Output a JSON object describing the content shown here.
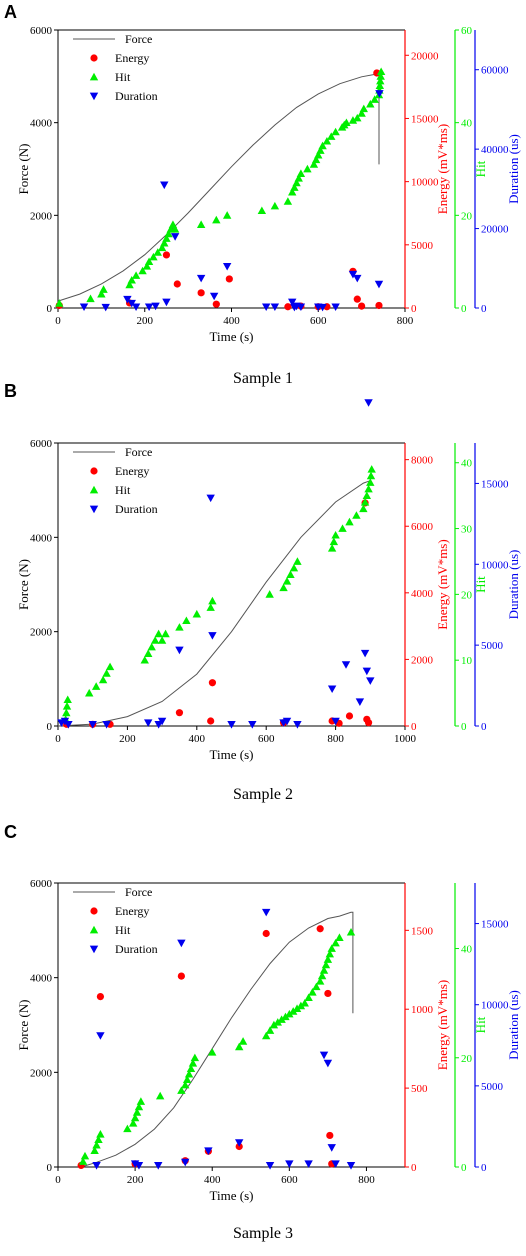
{
  "colors": {
    "force": "#555555",
    "energy": "#ff0000",
    "hit": "#00ee00",
    "duration": "#0000ee",
    "axis": "#000000"
  },
  "chart_data": [
    {
      "type": "scatter",
      "panel_label": "A",
      "caption": "Sample 1",
      "xlabel": "Time (s)",
      "xlim": [
        0,
        800
      ],
      "xticks": [
        0,
        200,
        400,
        600,
        800
      ],
      "legend_position": "top-left",
      "axes": {
        "force": {
          "label": "Force (N)",
          "lim": [
            0,
            6000
          ],
          "ticks": [
            0,
            2000,
            4000,
            6000
          ]
        },
        "energy": {
          "label": "Energy (mV*ms)",
          "lim": [
            0,
            22000
          ],
          "ticks": [
            0,
            5000,
            10000,
            15000,
            20000
          ]
        },
        "hit": {
          "label": "Hit",
          "lim": [
            0,
            60
          ],
          "ticks": [
            0,
            20,
            40,
            60
          ]
        },
        "duration": {
          "label": "Duration (us)",
          "lim": [
            0,
            70000
          ],
          "ticks": [
            0,
            20000,
            40000,
            60000
          ]
        }
      },
      "series": [
        {
          "name": "Force",
          "kind": "line",
          "axis": "force",
          "x": [
            0,
            50,
            100,
            150,
            200,
            250,
            300,
            350,
            400,
            450,
            500,
            550,
            600,
            650,
            700,
            740,
            740
          ],
          "y": [
            150,
            300,
            520,
            800,
            1150,
            1580,
            2050,
            2550,
            3050,
            3520,
            3950,
            4330,
            4620,
            4840,
            4990,
            5060,
            3100
          ]
        },
        {
          "name": "Energy",
          "kind": "circle",
          "axis": "energy",
          "x": [
            3,
            165,
            250,
            275,
            330,
            365,
            395,
            680,
            690,
            735,
            740,
            530,
            560,
            600,
            620,
            700
          ],
          "y": [
            200,
            400,
            4200,
            1900,
            1200,
            300,
            2300,
            2900,
            700,
            18600,
            200,
            100,
            150,
            100,
            100,
            150
          ]
        },
        {
          "name": "Hit",
          "kind": "triangle-up",
          "axis": "hit",
          "x": [
            3,
            75,
            100,
            105,
            165,
            170,
            180,
            195,
            205,
            210,
            220,
            230,
            240,
            245,
            250,
            255,
            260,
            265,
            270,
            330,
            365,
            390,
            470,
            500,
            530,
            540,
            545,
            550,
            555,
            560,
            575,
            590,
            595,
            600,
            605,
            610,
            620,
            630,
            640,
            655,
            660,
            665,
            680,
            690,
            700,
            705,
            720,
            730,
            740,
            741,
            742,
            743,
            744,
            745
          ],
          "y": [
            1,
            2,
            3,
            4,
            5,
            6,
            7,
            8,
            9,
            10,
            11,
            12,
            13,
            14,
            15,
            16,
            17,
            18,
            17,
            18,
            19,
            20,
            21,
            22,
            23,
            25,
            26,
            27,
            28,
            29,
            30,
            31,
            32,
            33,
            34,
            35,
            36,
            37,
            38,
            39,
            39.5,
            40,
            40.5,
            41,
            42,
            43,
            44,
            45,
            46,
            47,
            48,
            49,
            50,
            51
          ]
        },
        {
          "name": "Duration",
          "kind": "triangle-down",
          "axis": "duration",
          "x": [
            60,
            110,
            160,
            170,
            180,
            210,
            225,
            245,
            250,
            270,
            330,
            360,
            390,
            480,
            500,
            540,
            545,
            550,
            560,
            600,
            610,
            640,
            680,
            690,
            740,
            741
          ],
          "y": [
            300,
            200,
            2200,
            1200,
            300,
            300,
            500,
            31000,
            1500,
            18000,
            7500,
            3000,
            10500,
            300,
            300,
            1500,
            200,
            500,
            300,
            300,
            200,
            300,
            8500,
            7500,
            6000,
            54000
          ]
        }
      ]
    },
    {
      "type": "scatter",
      "panel_label": "B",
      "caption": "Sample 2",
      "xlabel": "Time (s)",
      "xlim": [
        0,
        1000
      ],
      "xticks": [
        0,
        200,
        400,
        600,
        800,
        1000
      ],
      "legend_position": "top-left",
      "axes": {
        "force": {
          "label": "Force (N)",
          "lim": [
            0,
            6000
          ],
          "ticks": [
            0,
            2000,
            4000,
            6000
          ]
        },
        "energy": {
          "label": "Energy (mV*ms)",
          "lim": [
            0,
            8500
          ],
          "ticks": [
            0,
            2000,
            4000,
            6000,
            8000
          ]
        },
        "hit": {
          "label": "Hit",
          "lim": [
            0,
            43
          ],
          "ticks": [
            0,
            10,
            20,
            30,
            40
          ]
        },
        "duration": {
          "label": "Duration (us)",
          "lim": [
            0,
            17500
          ],
          "ticks": [
            0,
            5000,
            10000,
            15000
          ]
        }
      },
      "series": [
        {
          "name": "Force",
          "kind": "line",
          "axis": "force",
          "x": [
            0,
            100,
            200,
            300,
            400,
            500,
            600,
            700,
            800,
            880,
            900
          ],
          "y": [
            0,
            40,
            200,
            520,
            1100,
            2000,
            3050,
            4000,
            4750,
            5150,
            5200
          ]
        },
        {
          "name": "Energy",
          "kind": "circle",
          "axis": "energy",
          "x": [
            25,
            100,
            150,
            350,
            440,
            445,
            650,
            790,
            810,
            840,
            885,
            890,
            895
          ],
          "y": [
            50,
            50,
            50,
            400,
            150,
            1300,
            100,
            150,
            80,
            300,
            6700,
            200,
            100
          ]
        },
        {
          "name": "Hit",
          "kind": "triangle-up",
          "axis": "hit",
          "x": [
            22,
            24,
            26,
            28,
            90,
            110,
            130,
            140,
            150,
            250,
            260,
            270,
            280,
            290,
            300,
            310,
            350,
            370,
            400,
            440,
            445,
            610,
            650,
            660,
            670,
            680,
            690,
            790,
            795,
            800,
            820,
            840,
            860,
            880,
            885,
            890,
            895,
            900,
            902,
            904
          ],
          "y": [
            1,
            2,
            3,
            4,
            5,
            6,
            7,
            8,
            9,
            10,
            11,
            12,
            13,
            14,
            13,
            14,
            15,
            16,
            17,
            18,
            19,
            20,
            21,
            22,
            23,
            24,
            25,
            27,
            28,
            29,
            30,
            31,
            32,
            33,
            34,
            35,
            36,
            37,
            38,
            39
          ]
        },
        {
          "name": "Duration",
          "kind": "triangle-down",
          "axis": "duration",
          "x": [
            10,
            20,
            30,
            100,
            140,
            260,
            290,
            300,
            350,
            440,
            445,
            500,
            560,
            650,
            660,
            690,
            790,
            800,
            830,
            870,
            885,
            890,
            895,
            900
          ],
          "y": [
            200,
            300,
            100,
            100,
            100,
            200,
            100,
            300,
            4700,
            14100,
            5600,
            100,
            100,
            200,
            300,
            100,
            2300,
            300,
            3800,
            1500,
            4500,
            3400,
            20000,
            2800
          ]
        }
      ]
    },
    {
      "type": "scatter",
      "panel_label": "C",
      "caption": "Sample 3",
      "xlabel": "Time (s)",
      "xlim": [
        0,
        900
      ],
      "xticks": [
        0,
        200,
        400,
        600,
        800
      ],
      "legend_position": "top-left",
      "axes": {
        "force": {
          "label": "Force (N)",
          "lim": [
            0,
            6000
          ],
          "ticks": [
            0,
            2000,
            4000,
            6000
          ]
        },
        "energy": {
          "label": "Energy (mV*ms)",
          "lim": [
            0,
            1800
          ],
          "ticks": [
            0,
            500,
            1000,
            1500
          ]
        },
        "hit": {
          "label": "Hit",
          "lim": [
            0,
            52
          ],
          "ticks": [
            0,
            20,
            40
          ]
        },
        "duration": {
          "label": "Duration (us)",
          "lim": [
            0,
            17500
          ],
          "ticks": [
            0,
            5000,
            10000,
            15000
          ]
        }
      },
      "series": [
        {
          "name": "Force",
          "kind": "line",
          "axis": "force",
          "x": [
            60,
            100,
            150,
            200,
            250,
            300,
            350,
            400,
            450,
            500,
            550,
            600,
            650,
            700,
            730,
            760,
            765,
            765
          ],
          "y": [
            0,
            100,
            250,
            480,
            800,
            1250,
            1850,
            2500,
            3150,
            3750,
            4300,
            4750,
            5050,
            5250,
            5300,
            5380,
            5380,
            3250
          ]
        },
        {
          "name": "Energy",
          "kind": "circle",
          "axis": "energy",
          "x": [
            60,
            110,
            200,
            320,
            330,
            390,
            470,
            540,
            680,
            700,
            705,
            710
          ],
          "y": [
            10,
            1080,
            20,
            1210,
            40,
            100,
            130,
            1480,
            1510,
            1100,
            200,
            20
          ]
        },
        {
          "name": "Hit",
          "kind": "triangle-up",
          "axis": "hit",
          "x": [
            65,
            70,
            95,
            100,
            105,
            110,
            180,
            195,
            200,
            205,
            210,
            215,
            265,
            320,
            330,
            335,
            340,
            345,
            350,
            355,
            400,
            470,
            480,
            540,
            550,
            560,
            570,
            580,
            590,
            600,
            610,
            620,
            630,
            640,
            650,
            660,
            670,
            680,
            685,
            690,
            695,
            700,
            705,
            710,
            720,
            730,
            760
          ],
          "y": [
            1,
            2,
            3,
            4,
            5,
            6,
            7,
            8,
            9,
            10,
            11,
            12,
            13,
            14,
            15,
            16,
            17,
            18,
            19,
            20,
            21,
            22,
            23,
            24,
            25,
            26,
            26.5,
            27,
            27.5,
            28,
            28.5,
            29,
            29.5,
            30,
            31,
            32,
            33,
            34,
            35,
            36,
            37,
            38,
            39,
            40,
            41,
            42,
            43
          ]
        },
        {
          "name": "Duration",
          "kind": "triangle-down",
          "axis": "duration",
          "x": [
            100,
            110,
            200,
            210,
            260,
            320,
            330,
            390,
            470,
            540,
            550,
            600,
            650,
            690,
            700,
            710,
            720,
            760
          ],
          "y": [
            100,
            8100,
            200,
            100,
            100,
            13800,
            300,
            1000,
            1500,
            15700,
            100,
            200,
            200,
            6900,
            6400,
            1200,
            200,
            100
          ]
        }
      ]
    }
  ]
}
